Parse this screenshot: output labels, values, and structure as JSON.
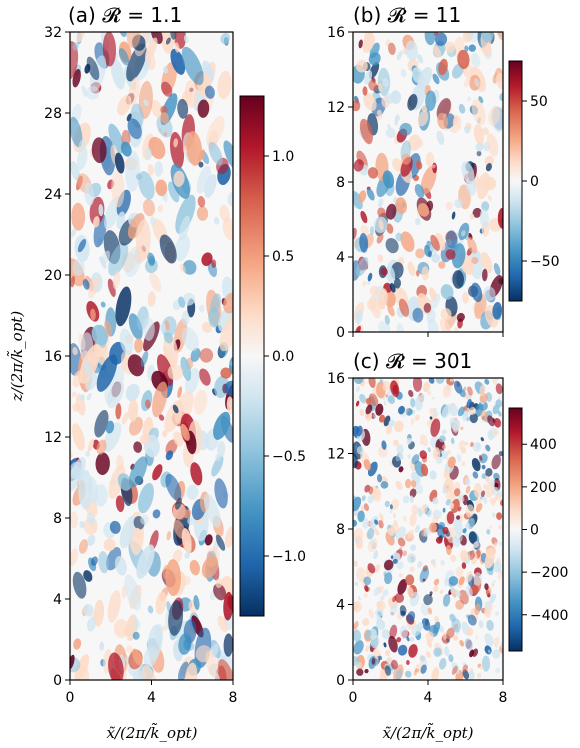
{
  "colors": {
    "cmap": "RdBu_r",
    "low": "#053061",
    "mid": "#f7f7f7",
    "high": "#67001f"
  },
  "xlabel": "x̃/(2π/k̃_opt)",
  "ylabel": "z/(2π/k̃_opt)",
  "chart_data": [
    {
      "type": "heatmap",
      "panel": "(a)",
      "title": "(a)  𝓡 = 1.1",
      "xlim": [
        0,
        8
      ],
      "ylim": [
        0,
        32
      ],
      "xticks": [
        "0",
        "4",
        "8"
      ],
      "yticks": [
        "0",
        "4",
        "8",
        "12",
        "16",
        "20",
        "24",
        "28",
        "32"
      ],
      "colorbar": {
        "ticks": [
          "−1.0",
          "−0.5",
          "0.0",
          "0.5",
          "1.0"
        ],
        "vmin": -1.3,
        "vmax": 1.3
      }
    },
    {
      "type": "heatmap",
      "panel": "(b)",
      "title": "(b)  𝓡 = 11",
      "xlim": [
        0,
        8
      ],
      "ylim": [
        0,
        16
      ],
      "xticks": [
        "",
        "",
        ""
      ],
      "yticks": [
        "0",
        "4",
        "8",
        "12",
        "16"
      ],
      "colorbar": {
        "ticks": [
          "−50",
          "0",
          "50"
        ],
        "vmin": -75,
        "vmax": 75
      }
    },
    {
      "type": "heatmap",
      "panel": "(c)",
      "title": "(c)  𝓡 = 301",
      "xlim": [
        0,
        8
      ],
      "ylim": [
        0,
        16
      ],
      "xticks": [
        "0",
        "4",
        "8"
      ],
      "yticks": [
        "0",
        "4",
        "8",
        "12",
        "16"
      ],
      "colorbar": {
        "ticks": [
          "−400",
          "−200",
          "0",
          "200",
          "400"
        ],
        "vmin": -570,
        "vmax": 570
      }
    }
  ]
}
